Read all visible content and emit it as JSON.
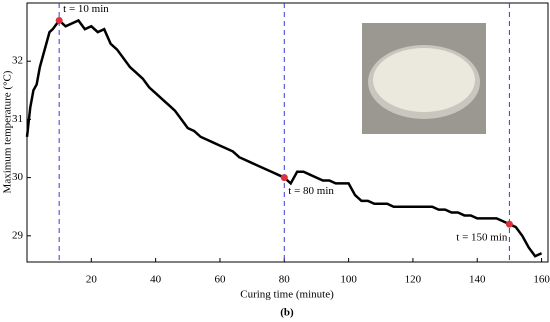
{
  "chart_data": {
    "type": "line",
    "x_label": "Curing time (minute)",
    "y_label": "Maximum temperature (°C)",
    "caption": "(b)",
    "x": [
      0,
      1,
      2,
      3,
      4,
      5,
      6,
      7,
      8,
      10,
      12,
      14,
      16,
      18,
      20,
      22,
      24,
      26,
      28,
      30,
      32,
      34,
      36,
      38,
      40,
      42,
      44,
      46,
      48,
      50,
      52,
      54,
      56,
      58,
      60,
      62,
      64,
      66,
      68,
      70,
      72,
      74,
      76,
      78,
      80,
      82,
      84,
      86,
      88,
      90,
      92,
      94,
      96,
      98,
      100,
      102,
      104,
      106,
      108,
      110,
      112,
      114,
      116,
      118,
      120,
      122,
      124,
      126,
      128,
      130,
      132,
      134,
      136,
      138,
      140,
      142,
      144,
      146,
      148,
      150,
      152,
      154,
      156,
      158,
      160
    ],
    "values": [
      30.7,
      31.2,
      31.5,
      31.6,
      31.9,
      32.1,
      32.3,
      32.5,
      32.55,
      32.7,
      32.6,
      32.65,
      32.7,
      32.55,
      32.6,
      32.5,
      32.55,
      32.3,
      32.2,
      32.05,
      31.9,
      31.8,
      31.7,
      31.55,
      31.45,
      31.35,
      31.25,
      31.15,
      31.0,
      30.85,
      30.8,
      30.7,
      30.65,
      30.6,
      30.55,
      30.5,
      30.45,
      30.35,
      30.3,
      30.25,
      30.2,
      30.15,
      30.1,
      30.05,
      30.0,
      29.9,
      30.1,
      30.1,
      30.05,
      30.0,
      29.95,
      29.95,
      29.9,
      29.9,
      29.9,
      29.7,
      29.6,
      29.6,
      29.55,
      29.55,
      29.55,
      29.5,
      29.5,
      29.5,
      29.5,
      29.5,
      29.5,
      29.5,
      29.45,
      29.45,
      29.4,
      29.4,
      29.35,
      29.35,
      29.3,
      29.3,
      29.3,
      29.3,
      29.25,
      29.2,
      29.15,
      29.0,
      28.8,
      28.65,
      28.7
    ],
    "color": "#000000",
    "markers": {
      "x": [
        10,
        80,
        150
      ],
      "values": [
        32.7,
        30.0,
        29.2
      ],
      "color": "#e0303a"
    },
    "annotations": [
      "t = 10 min",
      "t = 80 min",
      "t = 150 min"
    ],
    "annotation_color": "#d03030",
    "vline_color": "#3a3ad8",
    "xlim": [
      0,
      162
    ],
    "ylim": [
      28.55,
      33
    ],
    "xticks": [
      20,
      40,
      60,
      80,
      100,
      120,
      140,
      160
    ],
    "yticks": [
      29,
      30,
      31,
      32
    ]
  }
}
